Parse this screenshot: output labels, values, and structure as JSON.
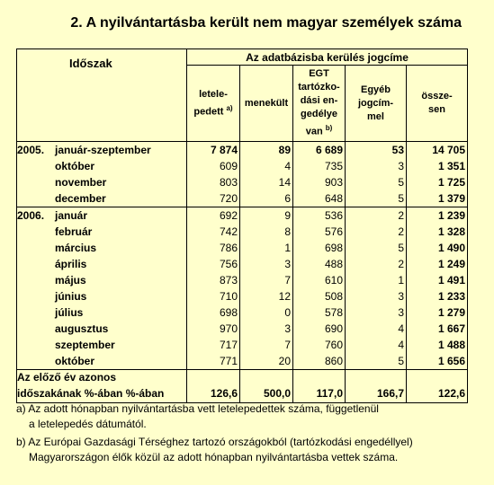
{
  "title": "2. A nyilvántartásba került nem magyar személyek száma",
  "header": {
    "period_label": "Időszak",
    "group_label": "Az adatbázisba kerülés jogcíme",
    "columns": [
      {
        "lines": [
          "letele-",
          "pedett"
        ],
        "sup": "a)"
      },
      {
        "lines": [
          "menekült"
        ],
        "sup": ""
      },
      {
        "lines": [
          "EGT",
          "tartózko-",
          "dási en-",
          "gedélye",
          "van"
        ],
        "sup": "b)"
      },
      {
        "lines": [
          "Egyéb",
          "jogcím-",
          "mel"
        ],
        "sup": ""
      },
      {
        "lines": [
          "össze-",
          "sen"
        ],
        "sup": ""
      }
    ]
  },
  "rows": [
    {
      "year": "2005.",
      "month": "január-szeptember",
      "values": [
        "7 874",
        "89",
        "6 689",
        "53",
        "14 705"
      ]
    },
    {
      "year": "",
      "month": "október",
      "values": [
        "609",
        "4",
        "735",
        "3",
        "1 351"
      ]
    },
    {
      "year": "",
      "month": "november",
      "values": [
        "803",
        "14",
        "903",
        "5",
        "1 725"
      ]
    },
    {
      "year": "",
      "month": "december",
      "values": [
        "720",
        "6",
        "648",
        "5",
        "1 379"
      ]
    },
    {
      "year": "2006.",
      "month": "január",
      "values": [
        "692",
        "9",
        "536",
        "2",
        "1 239"
      ]
    },
    {
      "year": "",
      "month": "február",
      "values": [
        "742",
        "8",
        "576",
        "2",
        "1 328"
      ]
    },
    {
      "year": "",
      "month": "március",
      "values": [
        "786",
        "1",
        "698",
        "5",
        "1 490"
      ]
    },
    {
      "year": "",
      "month": "április",
      "values": [
        "756",
        "3",
        "488",
        "2",
        "1 249"
      ]
    },
    {
      "year": "",
      "month": "május",
      "values": [
        "873",
        "7",
        "610",
        "1",
        "1 491"
      ]
    },
    {
      "year": "",
      "month": "június",
      "values": [
        "710",
        "12",
        "508",
        "3",
        "1 233"
      ]
    },
    {
      "year": "",
      "month": "július",
      "values": [
        "698",
        "0",
        "578",
        "3",
        "1 279"
      ]
    },
    {
      "year": "",
      "month": "augusztus",
      "values": [
        "970",
        "3",
        "690",
        "4",
        "1 667"
      ]
    },
    {
      "year": "",
      "month": "szeptember",
      "values": [
        "717",
        "7",
        "760",
        "4",
        "1 488"
      ]
    },
    {
      "year": "",
      "month": "október",
      "values": [
        "771",
        "20",
        "860",
        "5",
        "1 656"
      ]
    }
  ],
  "footer": {
    "label_line1": "Az előző év azonos",
    "label_line2": "időszakának %-ában %-ában",
    "values": [
      "126,6",
      "500,0",
      "117,0",
      "166,7",
      "122,6"
    ]
  },
  "footnotes": [
    {
      "line1": "a) Az adott hónapban nyilvántartásba vett letelepedettek száma, függetlenül",
      "line2": "a letelepedés dátumától."
    },
    {
      "line1": "b) Az Európai Gazdasági Térséghez tartozó országokból (tartózkodási engedéllyel)",
      "line2": "Magyarországon élők közül az adott hónapban nyilvántartásba vettek száma."
    }
  ]
}
